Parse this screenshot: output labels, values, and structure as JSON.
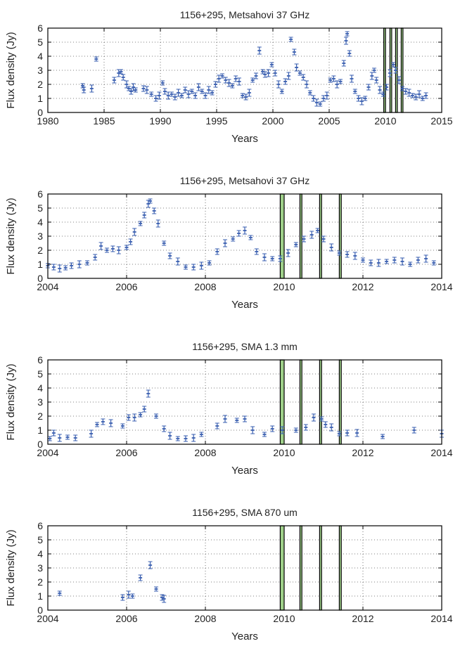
{
  "chart_data": [
    {
      "type": "scatter",
      "title": "1156+295, Metsahovi 37 GHz",
      "xlabel": "Years",
      "ylabel": "Flux density (Jy)",
      "xlim": [
        1980,
        2015
      ],
      "ylim": [
        0,
        6
      ],
      "xticks": [
        "1980",
        "1985",
        "1990",
        "1995",
        "2000",
        "2005",
        "2010",
        "2015"
      ],
      "yticks": [
        "0",
        "1",
        "2",
        "3",
        "4",
        "5",
        "6"
      ],
      "grid": true,
      "marker_color": "#3a5fb0",
      "vertical_lines": [
        2009.85,
        2010.0,
        2010.4,
        2010.5,
        2010.9,
        2011.0,
        2011.4,
        2011.55
      ],
      "series": [
        {
          "x": [
            1983.1,
            1983.2,
            1983.9,
            1984.3,
            1985.9,
            1986.3,
            1986.5,
            1986.7,
            1987.0,
            1987.2,
            1987.4,
            1987.6,
            1987.8,
            1988.5,
            1988.8,
            1989.2,
            1989.6,
            1989.9,
            1990.2,
            1990.4,
            1990.7,
            1991.0,
            1991.3,
            1991.6,
            1991.9,
            1992.2,
            1992.5,
            1992.8,
            1993.1,
            1993.4,
            1993.7,
            1994.0,
            1994.3,
            1994.6,
            1994.9,
            1995.2,
            1995.5,
            1995.8,
            1996.1,
            1996.4,
            1996.7,
            1997.0,
            1997.3,
            1997.6,
            1997.9,
            1998.2,
            1998.5,
            1998.8,
            1999.1,
            1999.3,
            1999.6,
            1999.9,
            2000.2,
            2000.5,
            2000.8,
            2001.1,
            2001.4,
            2001.6,
            2001.9,
            2002.1,
            2002.4,
            2002.7,
            2003.0,
            2003.3,
            2003.6,
            2003.9,
            2004.2,
            2004.5,
            2004.8,
            2005.1,
            2005.4,
            2005.7,
            2006.0,
            2006.3,
            2006.5,
            2006.6,
            2006.8,
            2007.0,
            2007.3,
            2007.6,
            2007.9,
            2008.2,
            2008.5,
            2008.8,
            2009.0,
            2009.2,
            2009.5,
            2009.8,
            2010.1,
            2010.4,
            2010.7,
            2010.9,
            2011.2,
            2011.5,
            2011.8,
            2012.1,
            2012.4,
            2012.7,
            2013.0,
            2013.3,
            2013.6
          ],
          "y": [
            1.9,
            1.6,
            1.7,
            3.8,
            2.3,
            2.8,
            2.9,
            2.5,
            2.0,
            1.7,
            1.5,
            1.8,
            1.6,
            1.7,
            1.6,
            1.3,
            1.0,
            1.2,
            2.1,
            1.5,
            1.2,
            1.3,
            1.1,
            1.4,
            1.2,
            1.6,
            1.3,
            1.5,
            1.2,
            1.8,
            1.5,
            1.2,
            1.6,
            1.4,
            2.0,
            2.4,
            2.6,
            2.3,
            2.1,
            1.9,
            2.4,
            2.2,
            1.2,
            1.1,
            1.4,
            2.3,
            2.6,
            4.4,
            2.9,
            2.7,
            2.8,
            3.4,
            2.8,
            2.0,
            1.5,
            2.2,
            2.6,
            5.2,
            4.3,
            3.2,
            2.8,
            2.5,
            2.0,
            1.4,
            1.0,
            0.7,
            0.6,
            1.0,
            1.2,
            2.3,
            2.4,
            2.0,
            2.2,
            3.5,
            5.1,
            5.6,
            4.2,
            2.4,
            1.5,
            1.0,
            0.8,
            1.0,
            1.8,
            2.6,
            3.0,
            2.3,
            1.6,
            1.3,
            1.8,
            2.8,
            3.4,
            3.0,
            2.3,
            1.7,
            1.5,
            1.4,
            1.2,
            1.1,
            1.3,
            1.0,
            1.2
          ]
        }
      ]
    },
    {
      "type": "scatter",
      "title": "1156+295, Metsahovi 37 GHz",
      "xlabel": "Years",
      "ylabel": "Flux density (Jy)",
      "xlim": [
        2004,
        2014
      ],
      "ylim": [
        0,
        6
      ],
      "xticks": [
        "2004",
        "2006",
        "2008",
        "2010",
        "2012",
        "2014"
      ],
      "yticks": [
        "0",
        "1",
        "2",
        "3",
        "4",
        "5",
        "6"
      ],
      "grid": true,
      "marker_color": "#3a5fb0",
      "vertical_lines": [
        2009.9,
        2010.0,
        2010.4,
        2010.45,
        2010.9,
        2010.95,
        2011.4,
        2011.45
      ],
      "series": [
        {
          "x": [
            2004.0,
            2004.15,
            2004.3,
            2004.45,
            2004.6,
            2004.8,
            2005.0,
            2005.2,
            2005.35,
            2005.5,
            2005.65,
            2005.8,
            2006.0,
            2006.1,
            2006.2,
            2006.35,
            2006.45,
            2006.55,
            2006.6,
            2006.7,
            2006.8,
            2006.95,
            2007.1,
            2007.3,
            2007.5,
            2007.7,
            2007.9,
            2008.1,
            2008.3,
            2008.5,
            2008.7,
            2008.85,
            2009.0,
            2009.15,
            2009.3,
            2009.5,
            2009.7,
            2009.9,
            2010.1,
            2010.3,
            2010.5,
            2010.7,
            2010.85,
            2011.0,
            2011.2,
            2011.4,
            2011.6,
            2011.8,
            2012.0,
            2012.2,
            2012.4,
            2012.6,
            2012.8,
            2013.0,
            2013.2,
            2013.4,
            2013.6,
            2013.8
          ],
          "y": [
            0.9,
            0.8,
            0.7,
            0.75,
            0.9,
            1.0,
            1.1,
            1.5,
            2.3,
            2.0,
            2.1,
            2.0,
            2.2,
            2.6,
            3.3,
            3.9,
            4.5,
            5.3,
            5.5,
            4.8,
            3.9,
            2.5,
            1.6,
            1.2,
            0.8,
            0.8,
            0.9,
            1.1,
            1.9,
            2.5,
            2.8,
            3.2,
            3.4,
            2.9,
            1.9,
            1.5,
            1.4,
            1.4,
            1.8,
            2.4,
            2.8,
            3.1,
            3.4,
            2.8,
            2.2,
            1.8,
            1.7,
            1.6,
            1.3,
            1.1,
            1.1,
            1.2,
            1.3,
            1.2,
            1.0,
            1.3,
            1.4,
            1.1
          ]
        }
      ]
    },
    {
      "type": "scatter",
      "title": "1156+295, SMA 1.3 mm",
      "xlabel": "Years",
      "ylabel": "Flux density (Jy)",
      "xlim": [
        2004,
        2014
      ],
      "ylim": [
        0,
        6
      ],
      "xticks": [
        "2004",
        "2006",
        "2008",
        "2010",
        "2012",
        "2014"
      ],
      "yticks": [
        "0",
        "1",
        "2",
        "3",
        "4",
        "5",
        "6"
      ],
      "grid": true,
      "marker_color": "#3a5fb0",
      "vertical_lines": [
        2009.9,
        2010.0,
        2010.4,
        2010.45,
        2010.9,
        2010.95,
        2011.4,
        2011.45
      ],
      "series": [
        {
          "x": [
            2004.05,
            2004.15,
            2004.3,
            2004.5,
            2004.7,
            2005.1,
            2005.25,
            2005.4,
            2005.6,
            2005.9,
            2006.05,
            2006.2,
            2006.35,
            2006.45,
            2006.55,
            2006.75,
            2006.95,
            2007.1,
            2007.3,
            2007.5,
            2007.7,
            2007.9,
            2008.3,
            2008.5,
            2008.8,
            2009.0,
            2009.2,
            2009.5,
            2009.7,
            2009.95,
            2010.3,
            2010.55,
            2010.75,
            2010.95,
            2011.05,
            2011.2,
            2011.4,
            2011.6,
            2011.85,
            2012.5,
            2013.3,
            2014.0
          ],
          "y": [
            0.4,
            0.8,
            0.45,
            0.5,
            0.45,
            0.75,
            1.4,
            1.6,
            1.5,
            1.3,
            1.9,
            1.9,
            2.1,
            2.5,
            3.6,
            2.0,
            1.1,
            0.6,
            0.4,
            0.4,
            0.45,
            0.7,
            1.3,
            1.8,
            1.7,
            1.8,
            1.0,
            0.7,
            1.1,
            1.0,
            1.0,
            1.2,
            1.9,
            1.8,
            1.4,
            1.2,
            0.75,
            0.8,
            0.8,
            0.55,
            1.0,
            0.75
          ]
        }
      ]
    },
    {
      "type": "scatter",
      "title": "1156+295, SMA 870 um",
      "xlabel": "Years",
      "ylabel": "Flux density (Jy)",
      "xlim": [
        2004,
        2014
      ],
      "ylim": [
        0,
        6
      ],
      "xticks": [
        "2004",
        "2006",
        "2008",
        "2010",
        "2012",
        "2014"
      ],
      "yticks": [
        "0",
        "1",
        "2",
        "3",
        "4",
        "5",
        "6"
      ],
      "grid": true,
      "marker_color": "#3a5fb0",
      "vertical_lines": [
        2009.9,
        2010.0,
        2010.4,
        2010.45,
        2010.9,
        2010.95,
        2011.4,
        2011.45
      ],
      "series": [
        {
          "x": [
            2004.3,
            2005.9,
            2006.05,
            2006.15,
            2006.35,
            2006.6,
            2006.75,
            2006.9,
            2006.95
          ],
          "y": [
            1.2,
            0.9,
            1.1,
            1.0,
            2.3,
            3.2,
            1.5,
            0.9,
            0.8
          ]
        }
      ]
    }
  ]
}
